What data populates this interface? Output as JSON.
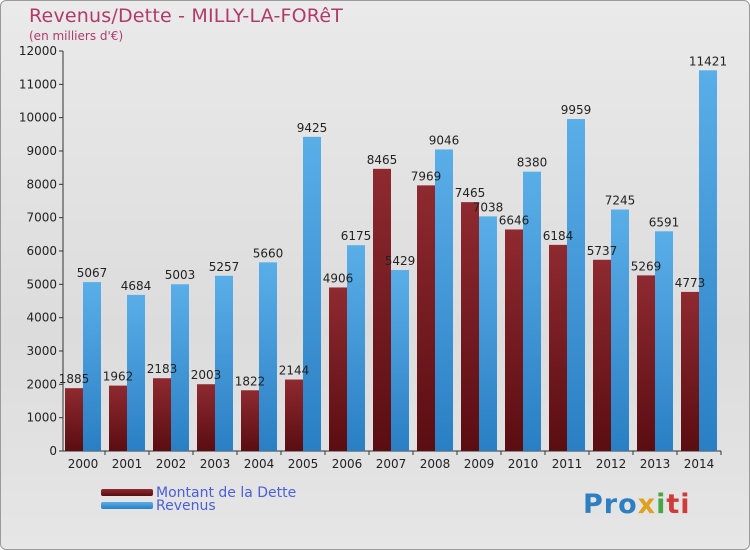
{
  "title": "Revenus/Dette - MILLY-LA-FORêT",
  "subtitle": "(en milliers d'€)",
  "colors": {
    "dette": "#7a1c22",
    "revenus": "#3d98dd",
    "title": "#b03a6a"
  },
  "chart_data": {
    "type": "bar",
    "categories": [
      "2000",
      "2001",
      "2002",
      "2003",
      "2004",
      "2005",
      "2006",
      "2007",
      "2008",
      "2009",
      "2010",
      "2011",
      "2012",
      "2013",
      "2014"
    ],
    "series": [
      {
        "name": "Montant de la Dette",
        "values": [
          1885,
          1962,
          2183,
          2003,
          1822,
          2144,
          4906,
          8465,
          7969,
          7465,
          6646,
          6184,
          5737,
          5269,
          4773
        ],
        "labels": [
          "1885",
          "1962",
          "2183",
          "2003",
          "1822",
          "2144",
          "4906",
          "8465",
          "7969",
          "7465",
          "6646",
          "6184",
          "5737",
          "5269",
          "4773"
        ]
      },
      {
        "name": "Revenus",
        "values": [
          5067,
          4684,
          5003,
          5257,
          5660,
          9425,
          6175,
          5429,
          9046,
          7038,
          8380,
          9959,
          7245,
          6591,
          11421
        ],
        "labels": [
          "5067",
          "4684",
          "5003",
          "5257",
          "5660",
          "9425",
          "6175",
          "5429",
          "9046",
          "7038",
          "8380",
          "9959",
          "7245",
          "6591",
          "11421"
        ]
      }
    ],
    "yticks": [
      "0",
      "1000",
      "2000",
      "3000",
      "4000",
      "5000",
      "6000",
      "7000",
      "8000",
      "9000",
      "10000",
      "11000",
      "12000"
    ],
    "ylim": [
      0,
      12000
    ],
    "legend_position": "bottom-left"
  },
  "legend": [
    "Montant de la Dette",
    "Revenus"
  ],
  "logo": {
    "p1": "Pro",
    "p2": "x",
    "p3": "i",
    "p4": "ti"
  }
}
